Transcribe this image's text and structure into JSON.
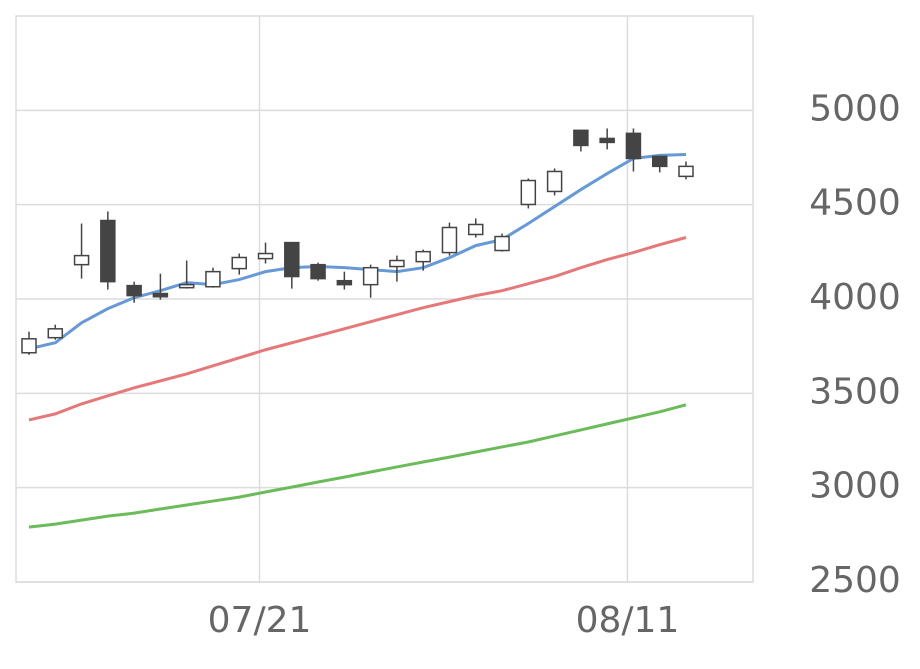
{
  "chart_data": {
    "type": "candlestick",
    "categories": [
      null,
      null,
      null,
      null,
      null,
      null,
      null,
      null,
      null,
      "07/21",
      null,
      null,
      null,
      null,
      null,
      null,
      null,
      null,
      null,
      null,
      null,
      null,
      null,
      "08/11",
      null,
      null
    ],
    "open": [
      3715,
      3795,
      4182,
      4416,
      4071,
      4029,
      4060,
      4065,
      4161,
      4214,
      4299,
      4182,
      4097,
      4076,
      4172,
      4198,
      4246,
      4342,
      4257,
      4501,
      4570,
      4894,
      4851,
      4878,
      4756,
      4650
    ],
    "high": [
      3827,
      3864,
      4400,
      4464,
      4092,
      4134,
      4204,
      4166,
      4241,
      4299,
      4299,
      4193,
      4145,
      4182,
      4230,
      4262,
      4405,
      4427,
      4347,
      4639,
      4692,
      4894,
      4904,
      4904,
      4756,
      4729
    ],
    "low": [
      3704,
      3784,
      4108,
      4050,
      3980,
      3996,
      4055,
      4060,
      4129,
      4188,
      4055,
      4097,
      4050,
      4007,
      4092,
      4150,
      4230,
      4326,
      4251,
      4480,
      4549,
      4782,
      4793,
      4676,
      4671,
      4634
    ],
    "close": [
      3789,
      3842,
      4230,
      4092,
      4018,
      4012,
      4076,
      4145,
      4220,
      4241,
      4119,
      4108,
      4076,
      4166,
      4204,
      4251,
      4379,
      4395,
      4331,
      4628,
      4676,
      4814,
      4830,
      4745,
      4703,
      4703
    ],
    "up_color": "#ffffff",
    "down_color": "#444444",
    "edge_color": "#444444",
    "series": [
      {
        "color": "#6699d6",
        "values": [
          3736,
          3768,
          3874,
          3949,
          4007,
          4044,
          4087,
          4076,
          4103,
          4145,
          4166,
          4172,
          4166,
          4156,
          4145,
          4166,
          4219,
          4283,
          4315,
          4400,
          4490,
          4580,
          4665,
          4745,
          4761,
          4766
        ]
      },
      {
        "color": "#e57878",
        "values": [
          3359,
          3391,
          3444,
          3487,
          3529,
          3566,
          3603,
          3646,
          3688,
          3731,
          3768,
          3805,
          3842,
          3880,
          3917,
          3954,
          3986,
          4018,
          4044,
          4081,
          4119,
          4166,
          4209,
          4246,
          4288,
          4326
        ]
      },
      {
        "color": "#6cbb5a",
        "values": [
          2791,
          2807,
          2828,
          2849,
          2865,
          2887,
          2908,
          2929,
          2950,
          2977,
          3003,
          3030,
          3056,
          3083,
          3110,
          3136,
          3162,
          3189,
          3216,
          3242,
          3274,
          3306,
          3338,
          3370,
          3402,
          3439
        ]
      }
    ],
    "ylim": [
      2500,
      5500
    ],
    "yticks": [
      2500,
      3000,
      3500,
      4000,
      4500,
      5000
    ],
    "grid": true
  }
}
